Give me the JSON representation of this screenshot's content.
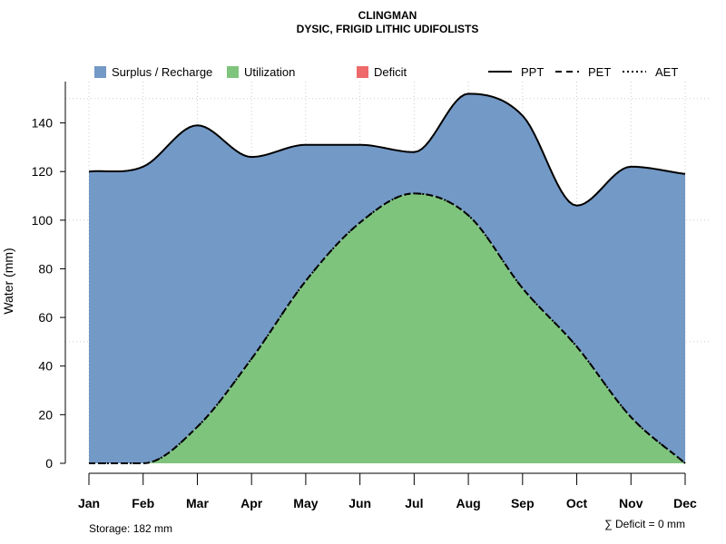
{
  "chart_data": {
    "type": "area",
    "title": "CLINGMAN",
    "subtitle": "DYSIC, FRIGID LITHIC UDIFOLISTS",
    "xlabel": "",
    "ylabel": "Water (mm)",
    "ylim": [
      0,
      157
    ],
    "yticks": [
      0,
      20,
      40,
      60,
      80,
      100,
      120,
      140
    ],
    "ytick_labels": [
      "0",
      "20",
      "40",
      "60",
      "80",
      "100",
      "120",
      "140"
    ],
    "categories": [
      "Jan",
      "Feb",
      "Mar",
      "Apr",
      "May",
      "Jun",
      "Jul",
      "Aug",
      "Sep",
      "Oct",
      "Nov",
      "Dec"
    ],
    "series": [
      {
        "name": "PPT",
        "style": "solid",
        "values": [
          120,
          122,
          139,
          126,
          131,
          131,
          128,
          152,
          143,
          106,
          122,
          119
        ]
      },
      {
        "name": "PET",
        "style": "dashed",
        "values": [
          0,
          0,
          15,
          43,
          75,
          99,
          111,
          102,
          72,
          48,
          19,
          0
        ]
      },
      {
        "name": "AET",
        "style": "dotted",
        "values": [
          0,
          0,
          15,
          43,
          75,
          99,
          111,
          102,
          72,
          48,
          19,
          0
        ]
      }
    ],
    "areas": [
      {
        "name": "Surplus / Recharge",
        "color": "#7399C6"
      },
      {
        "name": "Utilization",
        "color": "#7FC47D"
      },
      {
        "name": "Deficit",
        "color": "#EE6A6A"
      }
    ],
    "legend_position": "top",
    "grid": true,
    "storage_text": "Storage: 182 mm",
    "deficit_text": "∑ Deficit = 0 mm"
  }
}
